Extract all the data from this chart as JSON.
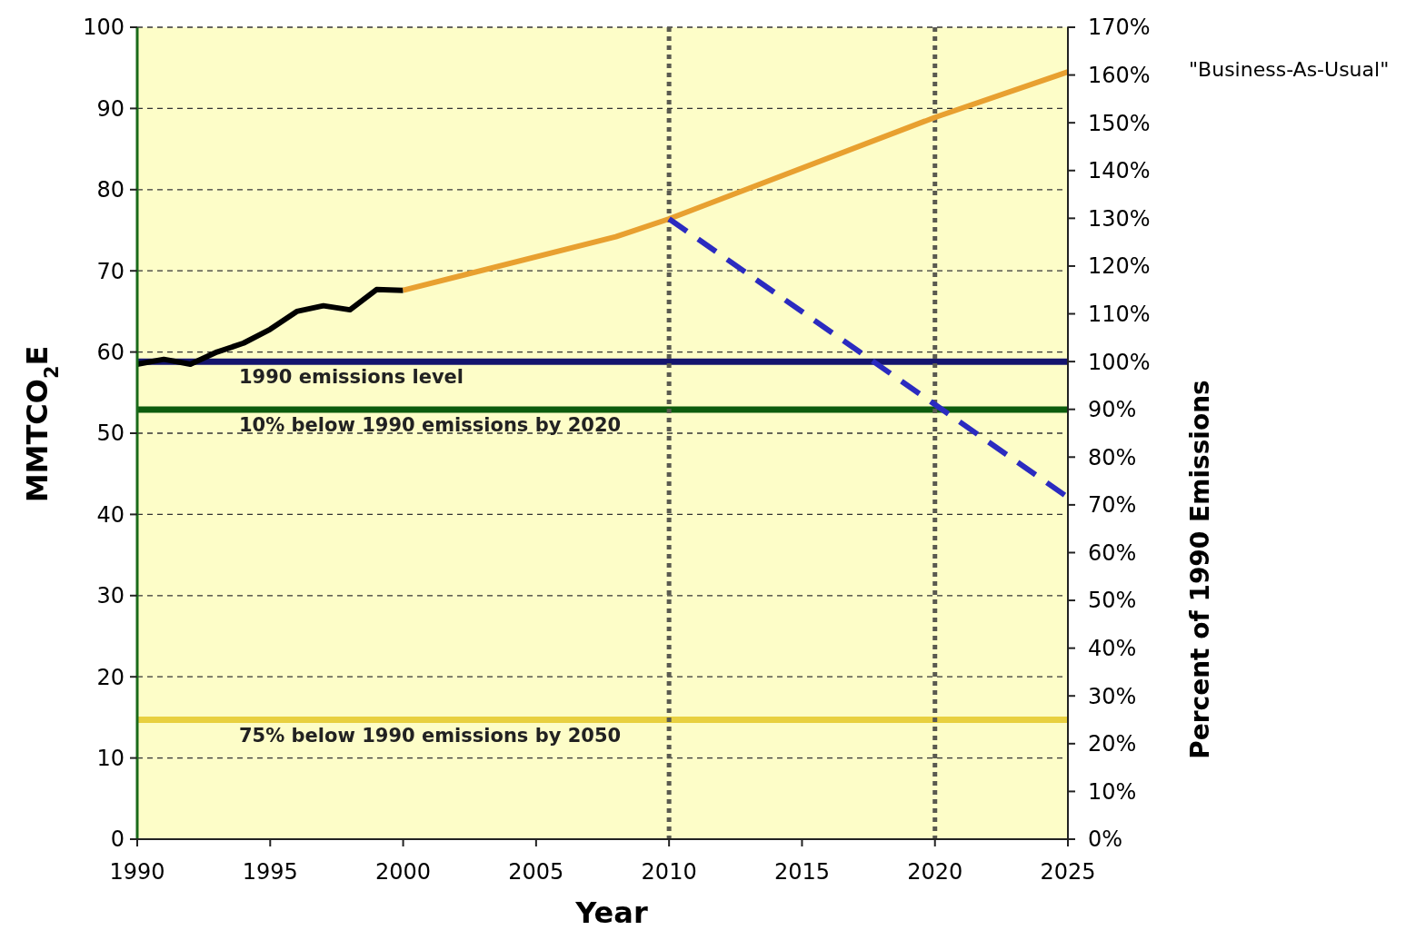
{
  "chart_data": {
    "type": "line",
    "xlabel": "Year",
    "ylabel": "MMTCO$_{2}$E",
    "y2label": "Percent of 1990 Emissions",
    "xlim": [
      1990,
      2025
    ],
    "xticks": [
      1990,
      1995,
      2000,
      2005,
      2010,
      2015,
      2020,
      2025
    ],
    "ylim": [
      0,
      100
    ],
    "yticks": [
      0,
      10,
      20,
      30,
      40,
      50,
      60,
      70,
      80,
      90,
      100
    ],
    "y2lim": [
      0,
      170
    ],
    "y2ticks": [
      {
        "value": 0,
        "label": "0%"
      },
      {
        "value": 10,
        "label": "10%"
      },
      {
        "value": 20,
        "label": "20%"
      },
      {
        "value": 30,
        "label": "30%"
      },
      {
        "value": 40,
        "label": "40%"
      },
      {
        "value": 50,
        "label": "50%"
      },
      {
        "value": 60,
        "label": "60%"
      },
      {
        "value": 70,
        "label": "70%"
      },
      {
        "value": 80,
        "label": "80%"
      },
      {
        "value": 90,
        "label": "90%"
      },
      {
        "value": 100,
        "label": "100%"
      },
      {
        "value": 110,
        "label": "110%"
      },
      {
        "value": 120,
        "label": "120%"
      },
      {
        "value": 130,
        "label": "130%"
      },
      {
        "value": 140,
        "label": "140%"
      },
      {
        "value": 150,
        "label": "150%"
      },
      {
        "value": 160,
        "label": "160%"
      },
      {
        "value": 170,
        "label": "170%"
      }
    ],
    "grid": "y",
    "series": [
      {
        "color": "#000000",
        "x": [
          1990,
          1991,
          1992,
          1993,
          1994,
          1995,
          1996,
          1997,
          1998,
          1999,
          2000
        ],
        "values": [
          58.5,
          59.1,
          58.5,
          60.0,
          61.1,
          62.8,
          65.0,
          65.7,
          65.2,
          67.7,
          67.6
        ]
      },
      {
        "color": "#e8a030",
        "x": [
          2000,
          2008,
          2010,
          2020,
          2025
        ],
        "values": [
          67.6,
          74.2,
          76.4,
          88.9,
          94.5
        ]
      },
      {
        "color": "#2b2bc0",
        "line_style": "dashed",
        "x": [
          2010,
          2025
        ],
        "values": [
          76.4,
          42.1
        ]
      }
    ],
    "ref_lines": [
      {
        "axis": "y",
        "value": 58.8,
        "label": "1990 emissions level",
        "color": "#14146e"
      },
      {
        "axis": "y",
        "value": 52.9,
        "label": "10% below 1990 emissions by 2020",
        "color": "#0d5c0d"
      },
      {
        "axis": "y",
        "value": 14.7,
        "label": "75% below 1990 emissions by 2050",
        "color": "#e8d040"
      },
      {
        "axis": "x",
        "value": 2010,
        "label": null,
        "color": "#5a5a50",
        "line_style": "dotted"
      },
      {
        "axis": "x",
        "value": 2020,
        "label": null,
        "color": "#5a5a50",
        "line_style": "dotted"
      }
    ],
    "annotations": [
      "\"Business-As-Usual\""
    ]
  }
}
